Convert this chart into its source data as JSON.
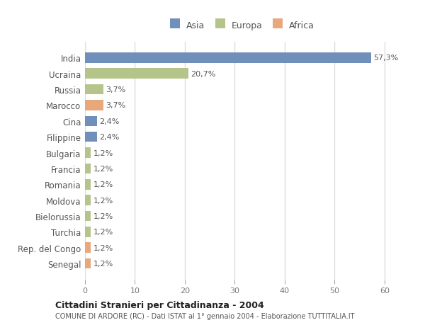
{
  "countries": [
    "India",
    "Ucraina",
    "Russia",
    "Marocco",
    "Cina",
    "Filippine",
    "Bulgaria",
    "Francia",
    "Romania",
    "Moldova",
    "Bielorussia",
    "Turchia",
    "Rep. del Congo",
    "Senegal"
  ],
  "values": [
    57.3,
    20.7,
    3.7,
    3.7,
    2.4,
    2.4,
    1.2,
    1.2,
    1.2,
    1.2,
    1.2,
    1.2,
    1.2,
    1.2
  ],
  "labels": [
    "57,3%",
    "20,7%",
    "3,7%",
    "3,7%",
    "2,4%",
    "2,4%",
    "1,2%",
    "1,2%",
    "1,2%",
    "1,2%",
    "1,2%",
    "1,2%",
    "1,2%",
    "1,2%"
  ],
  "colors": [
    "#7090bb",
    "#b5c48a",
    "#b5c48a",
    "#e8a87c",
    "#7090bb",
    "#7090bb",
    "#b5c48a",
    "#b5c48a",
    "#b5c48a",
    "#b5c48a",
    "#b5c48a",
    "#b5c48a",
    "#e8a87c",
    "#e8a87c"
  ],
  "legend_labels": [
    "Asia",
    "Europa",
    "Africa"
  ],
  "legend_colors": [
    "#7090bb",
    "#b5c48a",
    "#e8a87c"
  ],
  "title": "Cittadini Stranieri per Cittadinanza - 2004",
  "subtitle": "COMUNE DI ARDORE (RC) - Dati ISTAT al 1° gennaio 2004 - Elaborazione TUTTITALIA.IT",
  "xlim": [
    0,
    63
  ],
  "xticks": [
    0,
    10,
    20,
    30,
    40,
    50,
    60
  ],
  "background_color": "#ffffff",
  "plot_bg_color": "#ffffff",
  "grid_color": "#dddddd",
  "bar_height": 0.65
}
